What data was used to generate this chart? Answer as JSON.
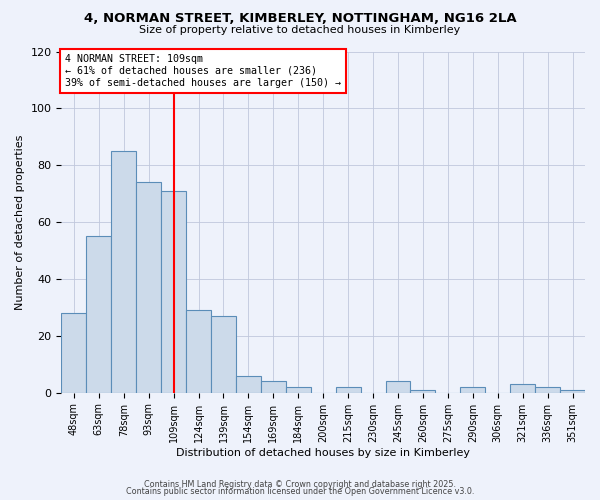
{
  "title": "4, NORMAN STREET, KIMBERLEY, NOTTINGHAM, NG16 2LA",
  "subtitle": "Size of property relative to detached houses in Kimberley",
  "xlabel": "Distribution of detached houses by size in Kimberley",
  "ylabel": "Number of detached properties",
  "bar_color": "#ccdaea",
  "bar_edge_color": "#5b8db8",
  "background_color": "#eef2fb",
  "grid_color": "#c0c8dc",
  "categories": [
    "48sqm",
    "63sqm",
    "78sqm",
    "93sqm",
    "109sqm",
    "124sqm",
    "139sqm",
    "154sqm",
    "169sqm",
    "184sqm",
    "200sqm",
    "215sqm",
    "230sqm",
    "245sqm",
    "260sqm",
    "275sqm",
    "290sqm",
    "306sqm",
    "321sqm",
    "336sqm",
    "351sqm"
  ],
  "values": [
    28,
    55,
    85,
    74,
    71,
    29,
    27,
    6,
    4,
    2,
    0,
    2,
    0,
    4,
    1,
    0,
    2,
    0,
    3,
    2,
    1
  ],
  "vline_x": 4,
  "vline_color": "red",
  "annotation_line1": "4 NORMAN STREET: 109sqm",
  "annotation_line2": "← 61% of detached houses are smaller (236)",
  "annotation_line3": "39% of semi-detached houses are larger (150) →",
  "ylim": [
    0,
    120
  ],
  "yticks": [
    0,
    20,
    40,
    60,
    80,
    100,
    120
  ],
  "footer1": "Contains HM Land Registry data © Crown copyright and database right 2025.",
  "footer2": "Contains public sector information licensed under the Open Government Licence v3.0."
}
